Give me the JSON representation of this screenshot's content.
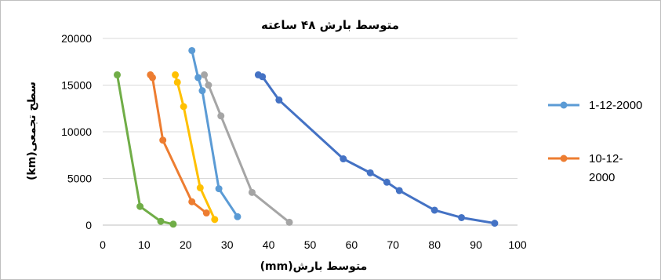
{
  "chart_data": {
    "type": "line",
    "title": "متوسط بارش ۴۸ ساعته",
    "xlabel": "(mm)متوسط بارش",
    "ylabel": "(km)سطح تجمعی",
    "xlim": [
      0,
      100
    ],
    "ylim": [
      0,
      20000
    ],
    "x_ticks": [
      "0",
      "10",
      "20",
      "30",
      "40",
      "50",
      "60",
      "70",
      "80",
      "90",
      "100"
    ],
    "y_ticks": [
      "0",
      "5000",
      "10000",
      "15000",
      "20000"
    ],
    "grid": "horizontal",
    "legend_position": "right",
    "series": [
      {
        "name": "1-12-2000",
        "color": "#5b9bd5",
        "points": [
          [
            21.5,
            18700
          ],
          [
            23,
            15800
          ],
          [
            24,
            14400
          ],
          [
            28,
            3900
          ],
          [
            32.5,
            900
          ]
        ]
      },
      {
        "name": "10-12-2000",
        "legend_lines": [
          "10-12-",
          "2000"
        ],
        "color": "#ed7d31",
        "points": [
          [
            11.5,
            16100
          ],
          [
            12,
            15800
          ],
          [
            14.5,
            9100
          ],
          [
            21.5,
            2500
          ],
          [
            25,
            1300
          ]
        ]
      },
      {
        "color": "#a5a5a5",
        "points": [
          [
            24.5,
            16100
          ],
          [
            25.5,
            15000
          ],
          [
            28.5,
            11700
          ],
          [
            36,
            3500
          ],
          [
            45,
            300
          ]
        ]
      },
      {
        "color": "#ffc000",
        "points": [
          [
            17.5,
            16100
          ],
          [
            18,
            15300
          ],
          [
            19.5,
            12700
          ],
          [
            23.5,
            4000
          ],
          [
            27,
            600
          ]
        ]
      },
      {
        "color": "#4472c4",
        "points": [
          [
            37.5,
            16100
          ],
          [
            38.5,
            15900
          ],
          [
            42.5,
            13400
          ],
          [
            58,
            7100
          ],
          [
            64.5,
            5600
          ],
          [
            68.5,
            4600
          ],
          [
            71.5,
            3700
          ],
          [
            80,
            1600
          ],
          [
            86.5,
            800
          ],
          [
            94.5,
            200
          ]
        ]
      },
      {
        "color": "#70ad47",
        "points": [
          [
            3.5,
            16100
          ],
          [
            9,
            2000
          ],
          [
            14,
            400
          ],
          [
            17,
            100
          ]
        ]
      }
    ]
  }
}
